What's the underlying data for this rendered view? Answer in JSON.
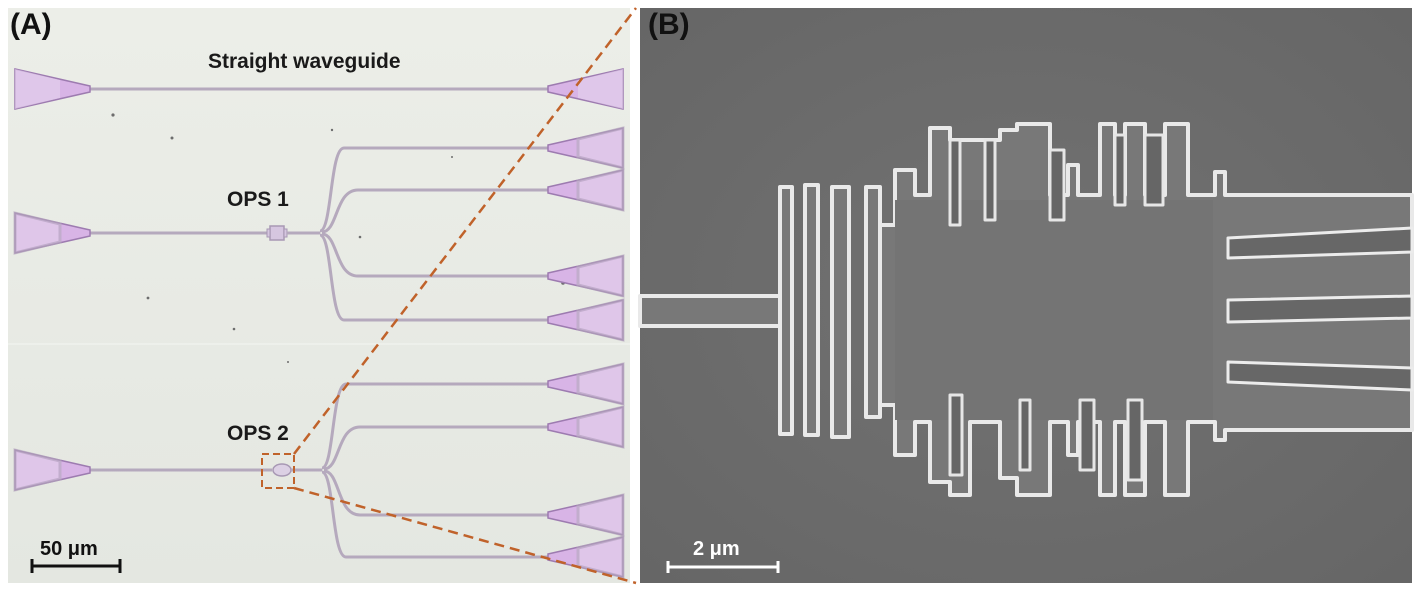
{
  "figure": {
    "panel_a": {
      "label": "(A)",
      "annotations": {
        "straight_waveguide": "Straight waveguide",
        "ops1": "OPS 1",
        "ops2": "OPS 2"
      },
      "scale_bar": "50 μm"
    },
    "panel_b": {
      "label": "(B)",
      "scale_bar": "2 μm"
    },
    "colors": {
      "optical_background": "#e9ebe5",
      "waveguide": "#b5a9bd",
      "coupler_fill": "#d8b4e6",
      "coupler_edge": "#9d7bb0",
      "zoom_lines": "#c0622a",
      "sem_background": "#6e6e6e",
      "sem_structure": "#787878",
      "sem_edge": "#e9e9e9"
    }
  }
}
